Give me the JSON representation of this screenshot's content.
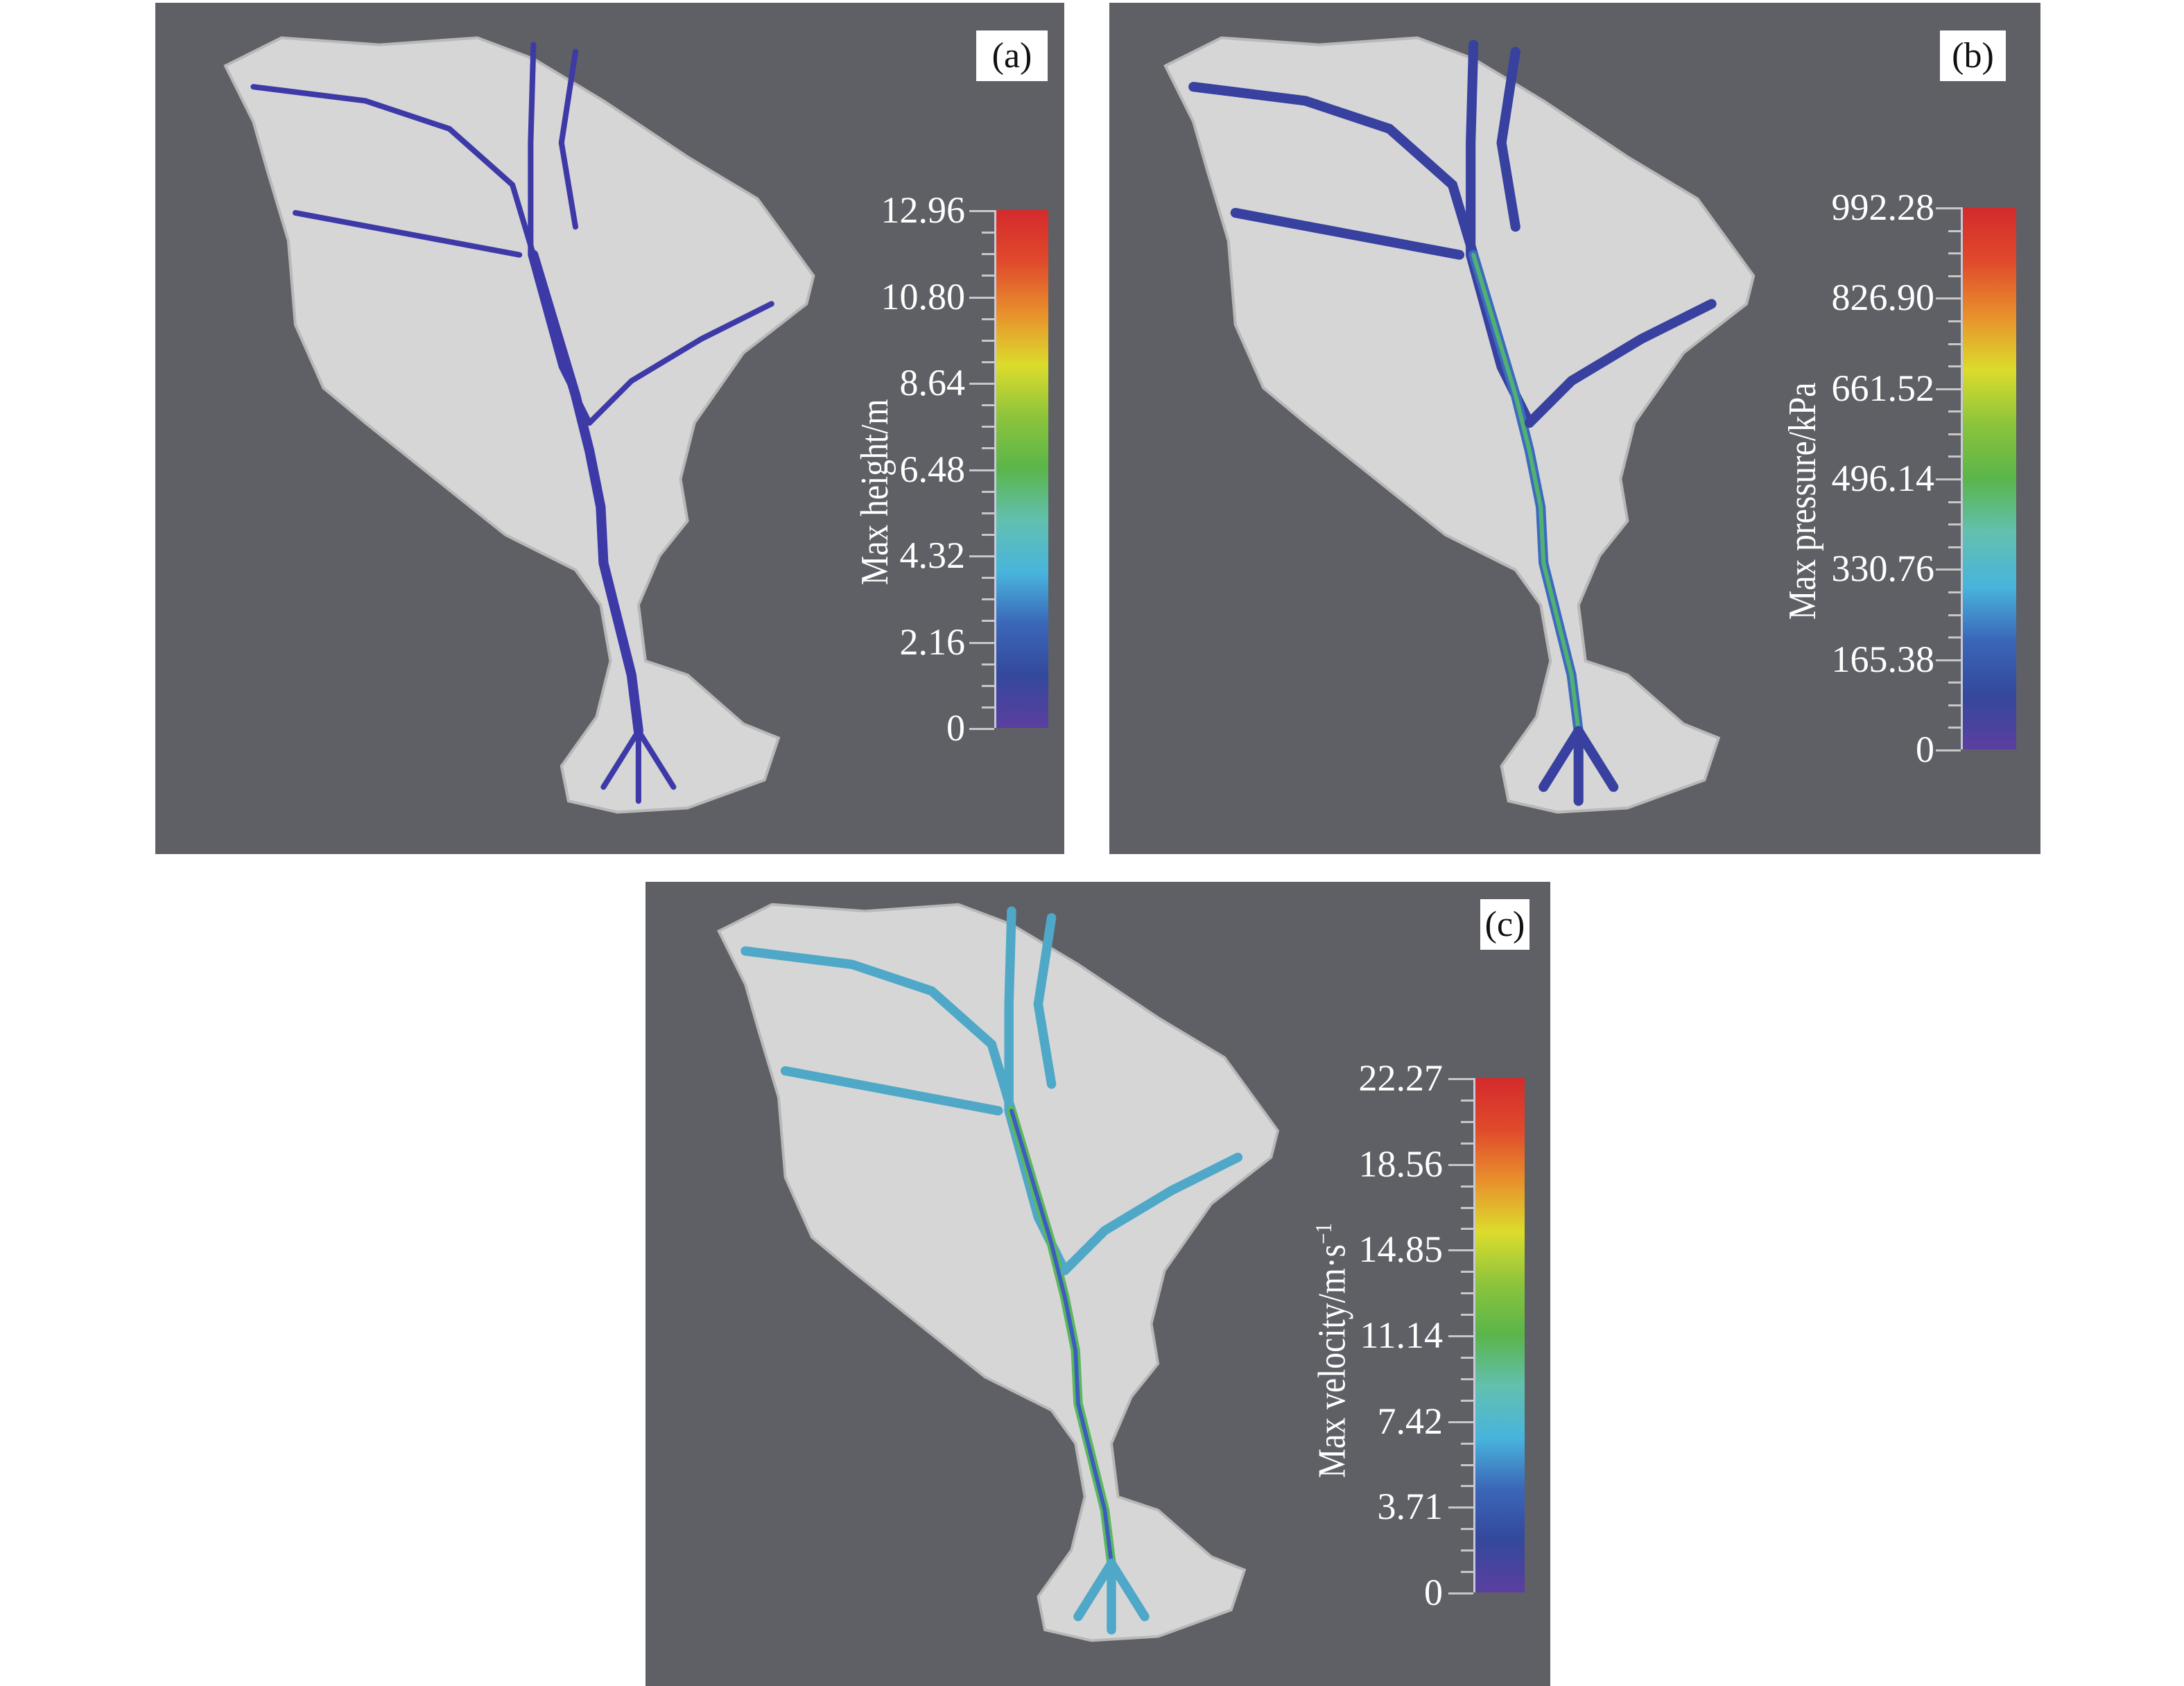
{
  "colors": {
    "background": "#5e6065",
    "terrain": "#d9d9d9",
    "flow_low": "#3b3fa8",
    "flow_mid": "#4fb0d0",
    "flow_high": "#5ab54a"
  },
  "colormap": [
    "#5b3fa0",
    "#34489c",
    "#3a66b8",
    "#48b4dc",
    "#62c0b0",
    "#5ab54a",
    "#8cc43c",
    "#dcdc2c",
    "#e8902c",
    "#e04a2c",
    "#d42a2c"
  ],
  "panels": [
    {
      "label": "(a)",
      "colorbar": {
        "title": "Max height/m",
        "ticks": [
          "12.96",
          "10.80",
          "8.64",
          "6.48",
          "4.32",
          "2.16",
          "0"
        ],
        "max": 12.96,
        "min": 0
      }
    },
    {
      "label": "(b)",
      "colorbar": {
        "title": "Max pressure/kPa",
        "ticks": [
          "992.28",
          "826.90",
          "661.52",
          "496.14",
          "330.76",
          "165.38",
          "0"
        ],
        "max": 992.28,
        "min": 0
      }
    },
    {
      "label": "(c)",
      "colorbar": {
        "title": "Max velocity/m·s",
        "title_sup": "−1",
        "ticks": [
          "22.27",
          "18.56",
          "14.85",
          "11.14",
          "7.42",
          "3.71",
          "0"
        ],
        "max": 22.27,
        "min": 0
      }
    }
  ]
}
